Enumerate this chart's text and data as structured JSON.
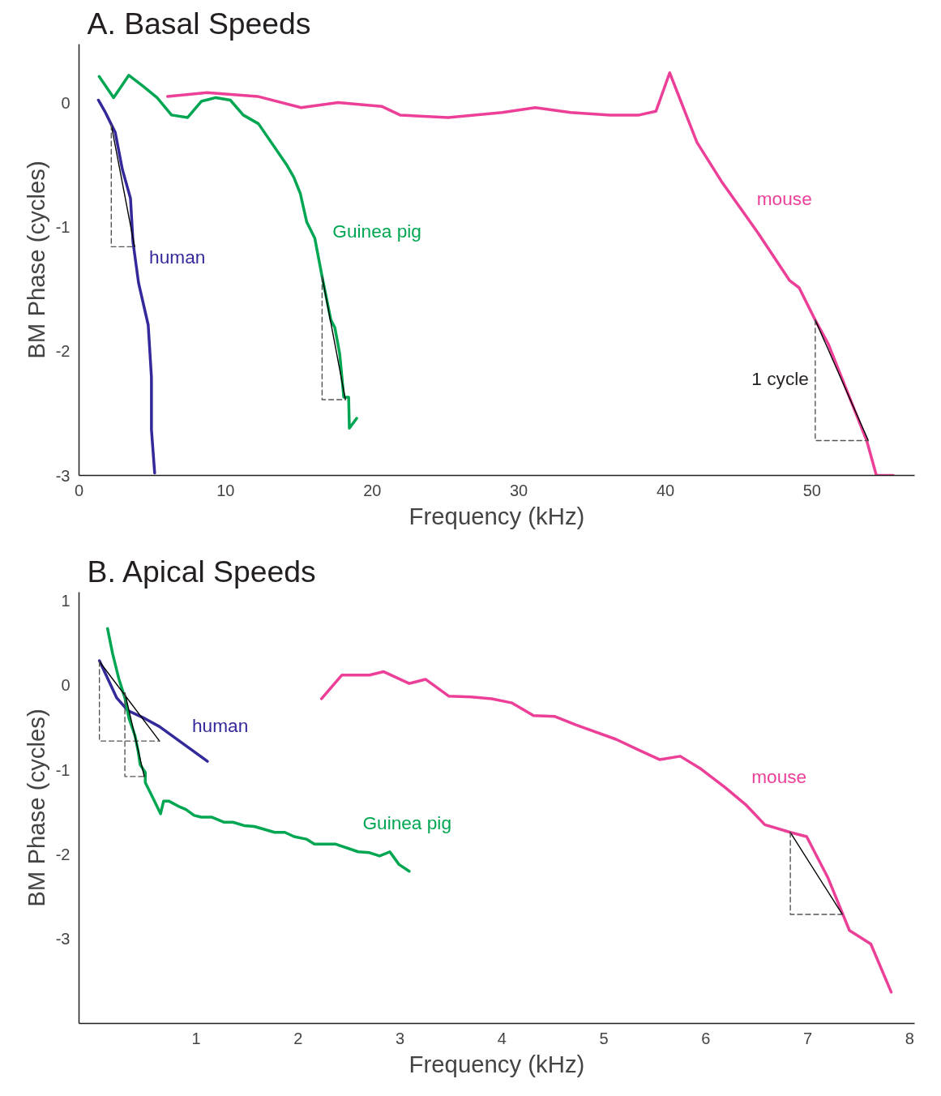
{
  "chart_data": [
    {
      "type": "line",
      "title": "A. Basal Speeds",
      "xlabel": "Frequency (kHz)",
      "ylabel": "BM Phase (cycles)",
      "xlim": [
        0,
        57
      ],
      "ylim": [
        -3,
        0.47
      ],
      "xticks": [
        0,
        10,
        20,
        30,
        40,
        50
      ],
      "yticks": [
        0,
        -1,
        -2,
        -3
      ],
      "grid": false,
      "annotations": [
        {
          "text": "1 cycle",
          "x": 50.22,
          "y": -2.22
        }
      ],
      "series": [
        {
          "name": "human",
          "color": "#33299a",
          "x": [
            1.32,
            1.76,
            2.47,
            2.96,
            3.51,
            3.68,
            4.06,
            4.72,
            4.94,
            4.94,
            5.16
          ],
          "values": [
            0.02,
            -0.07,
            -0.24,
            -0.54,
            -0.77,
            -1.12,
            -1.45,
            -1.79,
            -2.21,
            -2.63,
            -2.98
          ]
        },
        {
          "name": "Guinea pig",
          "color": "#00a651",
          "x": [
            1.37,
            2.36,
            3.4,
            4.39,
            5.32,
            6.31,
            7.41,
            8.34,
            9.33,
            10.32,
            11.2,
            12.24,
            14.16,
            14.65,
            15.09,
            15.53,
            16.08,
            16.58,
            17.18,
            17.45,
            17.78,
            18.06,
            18.39,
            18.44,
            18.94
          ],
          "values": [
            0.21,
            0.04,
            0.22,
            0.13,
            0.04,
            -0.1,
            -0.12,
            0.01,
            0.04,
            0.02,
            -0.1,
            -0.17,
            -0.5,
            -0.6,
            -0.73,
            -0.96,
            -1.09,
            -1.4,
            -1.75,
            -1.81,
            -2.02,
            -2.37,
            -2.37,
            -2.62,
            -2.54
          ]
        },
        {
          "name": "mouse",
          "color": "#ec3f97",
          "x": [
            6.04,
            8.73,
            12.18,
            15.15,
            17.67,
            20.64,
            21.9,
            25.19,
            28.87,
            31.12,
            33.53,
            36.22,
            38.2,
            39.35,
            40.29,
            42.15,
            43.8,
            46.32,
            48.46,
            49.12,
            50.22,
            51.1,
            53.73,
            54.39,
            55.54
          ],
          "values": [
            0.05,
            0.08,
            0.05,
            -0.04,
            0.0,
            -0.03,
            -0.1,
            -0.12,
            -0.08,
            -0.04,
            -0.08,
            -0.1,
            -0.1,
            -0.07,
            0.24,
            -0.32,
            -0.63,
            -1.05,
            -1.43,
            -1.49,
            -1.75,
            -1.94,
            -2.72,
            -3.0,
            -3.0
          ]
        },
        {
          "color": "#000000",
          "x": [
            2.2,
            3.79
          ],
          "values": [
            -0.18,
            -1.16
          ]
        },
        {
          "color": "#555555",
          "line_style": "dashed",
          "x": [
            2.2,
            2.2,
            3.79
          ],
          "values": [
            -0.18,
            -1.16,
            -1.16
          ]
        },
        {
          "color": "#000000",
          "x": [
            16.58,
            18.17
          ],
          "values": [
            -1.4,
            -2.39
          ]
        },
        {
          "color": "#555555",
          "line_style": "dashed",
          "x": [
            16.58,
            16.58,
            18.17
          ],
          "values": [
            -1.4,
            -2.39,
            -2.39
          ]
        },
        {
          "color": "#000000",
          "x": [
            50.22,
            53.84
          ],
          "values": [
            -1.75,
            -2.72
          ]
        },
        {
          "color": "#555555",
          "line_style": "dashed",
          "x": [
            50.22,
            50.22,
            53.84
          ],
          "values": [
            -1.75,
            -2.72,
            -2.72
          ]
        }
      ]
    },
    {
      "type": "line",
      "title": "B. Apical Speeds",
      "xlabel": "Frequency (kHz)",
      "ylabel": "BM Phase (cycles)",
      "xlim": [
        -0.15,
        8.05
      ],
      "ylim": [
        -4,
        1.1
      ],
      "xticks": [
        1,
        2,
        3,
        4,
        5,
        6,
        7,
        8
      ],
      "yticks": [
        1,
        0,
        -1,
        -2,
        -3
      ],
      "grid": false,
      "series": [
        {
          "name": "human",
          "color": "#33299a",
          "x": [
            0.05,
            0.22,
            0.33,
            0.49,
            0.64,
            1.11
          ],
          "values": [
            0.29,
            -0.15,
            -0.3,
            -0.39,
            -0.49,
            -0.9
          ]
        },
        {
          "name": "Guinea pig",
          "color": "#00a651",
          "x": [
            0.13,
            0.18,
            0.24,
            0.3,
            0.34,
            0.4,
            0.43,
            0.45,
            0.5,
            0.5,
            0.57,
            0.65,
            0.68,
            0.73,
            0.84,
            0.9,
            0.98,
            1.05,
            1.15,
            1.27,
            1.36,
            1.47,
            1.57,
            1.77,
            1.87,
            1.96,
            2.08,
            2.16,
            2.37,
            2.59,
            2.7,
            2.8,
            2.9,
            2.99,
            3.09
          ],
          "values": [
            0.67,
            0.37,
            0.08,
            -0.15,
            -0.39,
            -0.6,
            -0.78,
            -0.94,
            -1.03,
            -1.15,
            -1.32,
            -1.52,
            -1.37,
            -1.37,
            -1.44,
            -1.47,
            -1.54,
            -1.56,
            -1.56,
            -1.62,
            -1.62,
            -1.66,
            -1.67,
            -1.74,
            -1.74,
            -1.79,
            -1.82,
            -1.88,
            -1.88,
            -1.97,
            -1.98,
            -2.02,
            -1.97,
            -2.12,
            -2.2
          ]
        },
        {
          "name": "mouse",
          "color": "#ec3f97",
          "x": [
            2.23,
            2.43,
            2.7,
            2.84,
            3.09,
            3.25,
            3.48,
            3.7,
            3.9,
            4.1,
            4.31,
            4.52,
            4.73,
            5.12,
            5.35,
            5.55,
            5.75,
            5.94,
            6.19,
            6.39,
            6.58,
            6.83,
            6.99,
            7.2,
            7.41,
            7.62,
            7.82
          ],
          "values": [
            -0.16,
            0.12,
            0.12,
            0.16,
            0.02,
            0.07,
            -0.13,
            -0.14,
            -0.16,
            -0.21,
            -0.36,
            -0.37,
            -0.47,
            -0.64,
            -0.77,
            -0.88,
            -0.84,
            -0.98,
            -1.21,
            -1.41,
            -1.65,
            -1.74,
            -1.79,
            -2.28,
            -2.9,
            -3.06,
            -3.63
          ]
        },
        {
          "color": "#000000",
          "x": [
            0.05,
            0.64
          ],
          "values": [
            0.28,
            -0.66
          ]
        },
        {
          "color": "#555555",
          "line_style": "dashed",
          "x": [
            0.05,
            0.05,
            0.64
          ],
          "values": [
            0.28,
            -0.66,
            -0.66
          ]
        },
        {
          "color": "#000000",
          "x": [
            0.3,
            0.49
          ],
          "values": [
            -0.09,
            -1.08
          ]
        },
        {
          "color": "#555555",
          "line_style": "dashed",
          "x": [
            0.3,
            0.3,
            0.49
          ],
          "values": [
            -0.09,
            -1.08,
            -1.08
          ]
        },
        {
          "color": "#000000",
          "x": [
            6.83,
            7.34
          ],
          "values": [
            -1.74,
            -2.71
          ]
        },
        {
          "color": "#555555",
          "line_style": "dashed",
          "x": [
            6.83,
            6.83,
            7.34
          ],
          "values": [
            -1.74,
            -2.71,
            -2.71
          ]
        }
      ]
    }
  ]
}
